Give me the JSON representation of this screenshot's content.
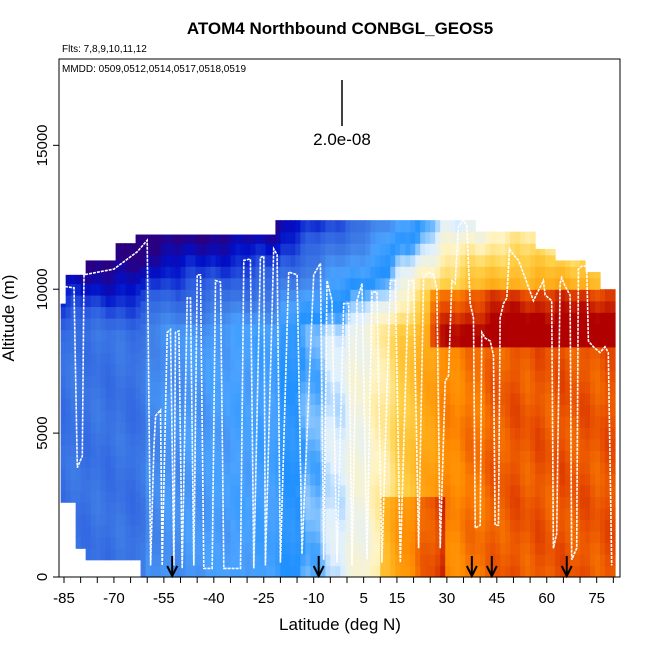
{
  "chart_data": {
    "type": "heatmap",
    "title": "ATOM4 Northbound CONBGL_GEOS5",
    "subtitle_left": "Flts: 7,8,9,10,11,12",
    "inner_label": "MMDD: 0509,0512,0514,0517,0518,0519",
    "xlabel": "Latitude (deg N)",
    "ylabel": "Altitude (m)",
    "xlim": [
      -86.5,
      82
    ],
    "ylim": [
      0,
      18000
    ],
    "x_ticks": [
      -85,
      -70,
      -55,
      -40,
      -25,
      -10,
      5,
      15,
      30,
      45,
      60,
      75
    ],
    "y_ticks": [
      0,
      5000,
      10000,
      15000
    ],
    "scale_bar_label": "2.0e-08",
    "arrow_latitudes": [
      -52.5,
      -8.5,
      37.5,
      43.5,
      66
    ],
    "colormap": [
      "#2a0080",
      "#0010c8",
      "#2d5fe0",
      "#3f7de6",
      "#4aa3ff",
      "#1e90ff",
      "#dff0ff",
      "#fff4c2",
      "#ffd24a",
      "#ffae19",
      "#ff8a00",
      "#e64a00",
      "#b00000"
    ],
    "flight_track": [
      [
        -86,
        9500
      ],
      [
        -85.5,
        10100
      ],
      [
        -82,
        10050
      ],
      [
        -81,
        3800
      ],
      [
        -79.5,
        4200
      ],
      [
        -79,
        10500
      ],
      [
        -70,
        10700
      ],
      [
        -63,
        11300
      ],
      [
        -60,
        11700
      ],
      [
        -59,
        400
      ],
      [
        -58,
        4500
      ],
      [
        -57.5,
        5600
      ],
      [
        -56,
        5800
      ],
      [
        -55.5,
        400
      ],
      [
        -54,
        8500
      ],
      [
        -53,
        8600
      ],
      [
        -52,
        400
      ],
      [
        -51.5,
        8500
      ],
      [
        -50.5,
        8550
      ],
      [
        -49.5,
        300
      ],
      [
        -48,
        9700
      ],
      [
        -47,
        9700
      ],
      [
        -46,
        400
      ],
      [
        -45,
        10500
      ],
      [
        -44,
        10500
      ],
      [
        -43,
        300
      ],
      [
        -40.5,
        300
      ],
      [
        -39.5,
        10300
      ],
      [
        -38,
        10250
      ],
      [
        -37,
        300
      ],
      [
        -32,
        300
      ],
      [
        -31,
        11000
      ],
      [
        -29,
        11050
      ],
      [
        -28,
        300
      ],
      [
        -26,
        11100
      ],
      [
        -25,
        11150
      ],
      [
        -24.5,
        400
      ],
      [
        -22,
        11400
      ],
      [
        -21,
        11200
      ],
      [
        -20,
        500
      ],
      [
        -17.5,
        10600
      ],
      [
        -15,
        10500
      ],
      [
        -13.5,
        800
      ],
      [
        -10,
        10500
      ],
      [
        -8,
        10900
      ],
      [
        -7,
        600
      ],
      [
        -6,
        10300
      ],
      [
        -4.5,
        9600
      ],
      [
        -3,
        500
      ],
      [
        -1,
        9500
      ],
      [
        0.5,
        9500
      ],
      [
        1.5,
        400
      ],
      [
        3,
        9600
      ],
      [
        4.5,
        10200
      ],
      [
        6,
        600
      ],
      [
        7.5,
        9900
      ],
      [
        9,
        9900
      ],
      [
        10.5,
        500
      ],
      [
        13,
        10300
      ],
      [
        14.5,
        10300
      ],
      [
        16,
        500
      ],
      [
        18.5,
        10300
      ],
      [
        20,
        10300
      ],
      [
        21.5,
        1000
      ],
      [
        23,
        10400
      ],
      [
        24.5,
        10600
      ],
      [
        26,
        10500
      ],
      [
        27,
        10000
      ],
      [
        28,
        1000
      ],
      [
        29.5,
        6800
      ],
      [
        30.5,
        7000
      ],
      [
        31.5,
        10300
      ],
      [
        32.5,
        10200
      ],
      [
        33.5,
        12200
      ],
      [
        35,
        12400
      ],
      [
        36,
        12200
      ],
      [
        37,
        9500
      ],
      [
        38,
        9000
      ],
      [
        38.5,
        1700
      ],
      [
        40,
        1800
      ],
      [
        40.5,
        8500
      ],
      [
        41.5,
        8300
      ],
      [
        43,
        8200
      ],
      [
        44,
        7700
      ],
      [
        44.5,
        1800
      ],
      [
        45.5,
        1800
      ],
      [
        46,
        9000
      ],
      [
        47,
        9500
      ],
      [
        48,
        9700
      ],
      [
        48.8,
        11400
      ],
      [
        50,
        11200
      ],
      [
        51.5,
        11000
      ],
      [
        53.5,
        10400
      ],
      [
        56,
        9600
      ],
      [
        59,
        10300
      ],
      [
        59.5,
        9800
      ],
      [
        61.5,
        9600
      ],
      [
        62,
        1000
      ],
      [
        63,
        1500
      ],
      [
        64,
        10200
      ],
      [
        64.5,
        10400
      ],
      [
        65.5,
        10100
      ],
      [
        67,
        9800
      ],
      [
        67.5,
        600
      ],
      [
        69,
        1000
      ],
      [
        69.5,
        10700
      ],
      [
        70.5,
        10800
      ],
      [
        72,
        10800
      ],
      [
        72.5,
        8200
      ],
      [
        74,
        8000
      ],
      [
        75,
        7900
      ],
      [
        76,
        7800
      ],
      [
        77.5,
        8000
      ],
      [
        78.5,
        7800
      ],
      [
        79.5,
        400
      ]
    ]
  }
}
